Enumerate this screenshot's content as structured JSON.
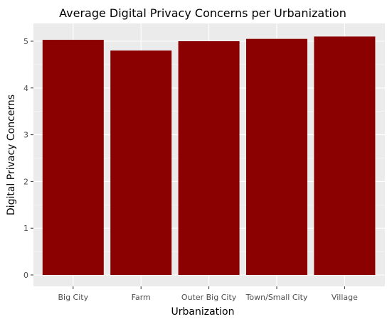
{
  "chart_data": {
    "type": "bar",
    "title": "Average Digital Privacy Concerns per Urbanization",
    "xlabel": "Urbanization",
    "ylabel": "Digital Privacy Concerns",
    "categories": [
      "Big City",
      "Farm",
      "Outer Big City",
      "Town/Small City",
      "Village"
    ],
    "values": [
      5.03,
      4.8,
      5.0,
      5.05,
      5.1
    ],
    "ylim": [
      0,
      5.3
    ],
    "yticks": [
      0,
      1,
      2,
      3,
      4,
      5
    ],
    "grid": true,
    "legend": "none",
    "colors": {
      "bar": "#8b0000",
      "panel_background": "#ebebeb",
      "grid_major": "#ffffff",
      "tick_text": "#4d4d4d",
      "tick_mark": "#333333"
    }
  }
}
